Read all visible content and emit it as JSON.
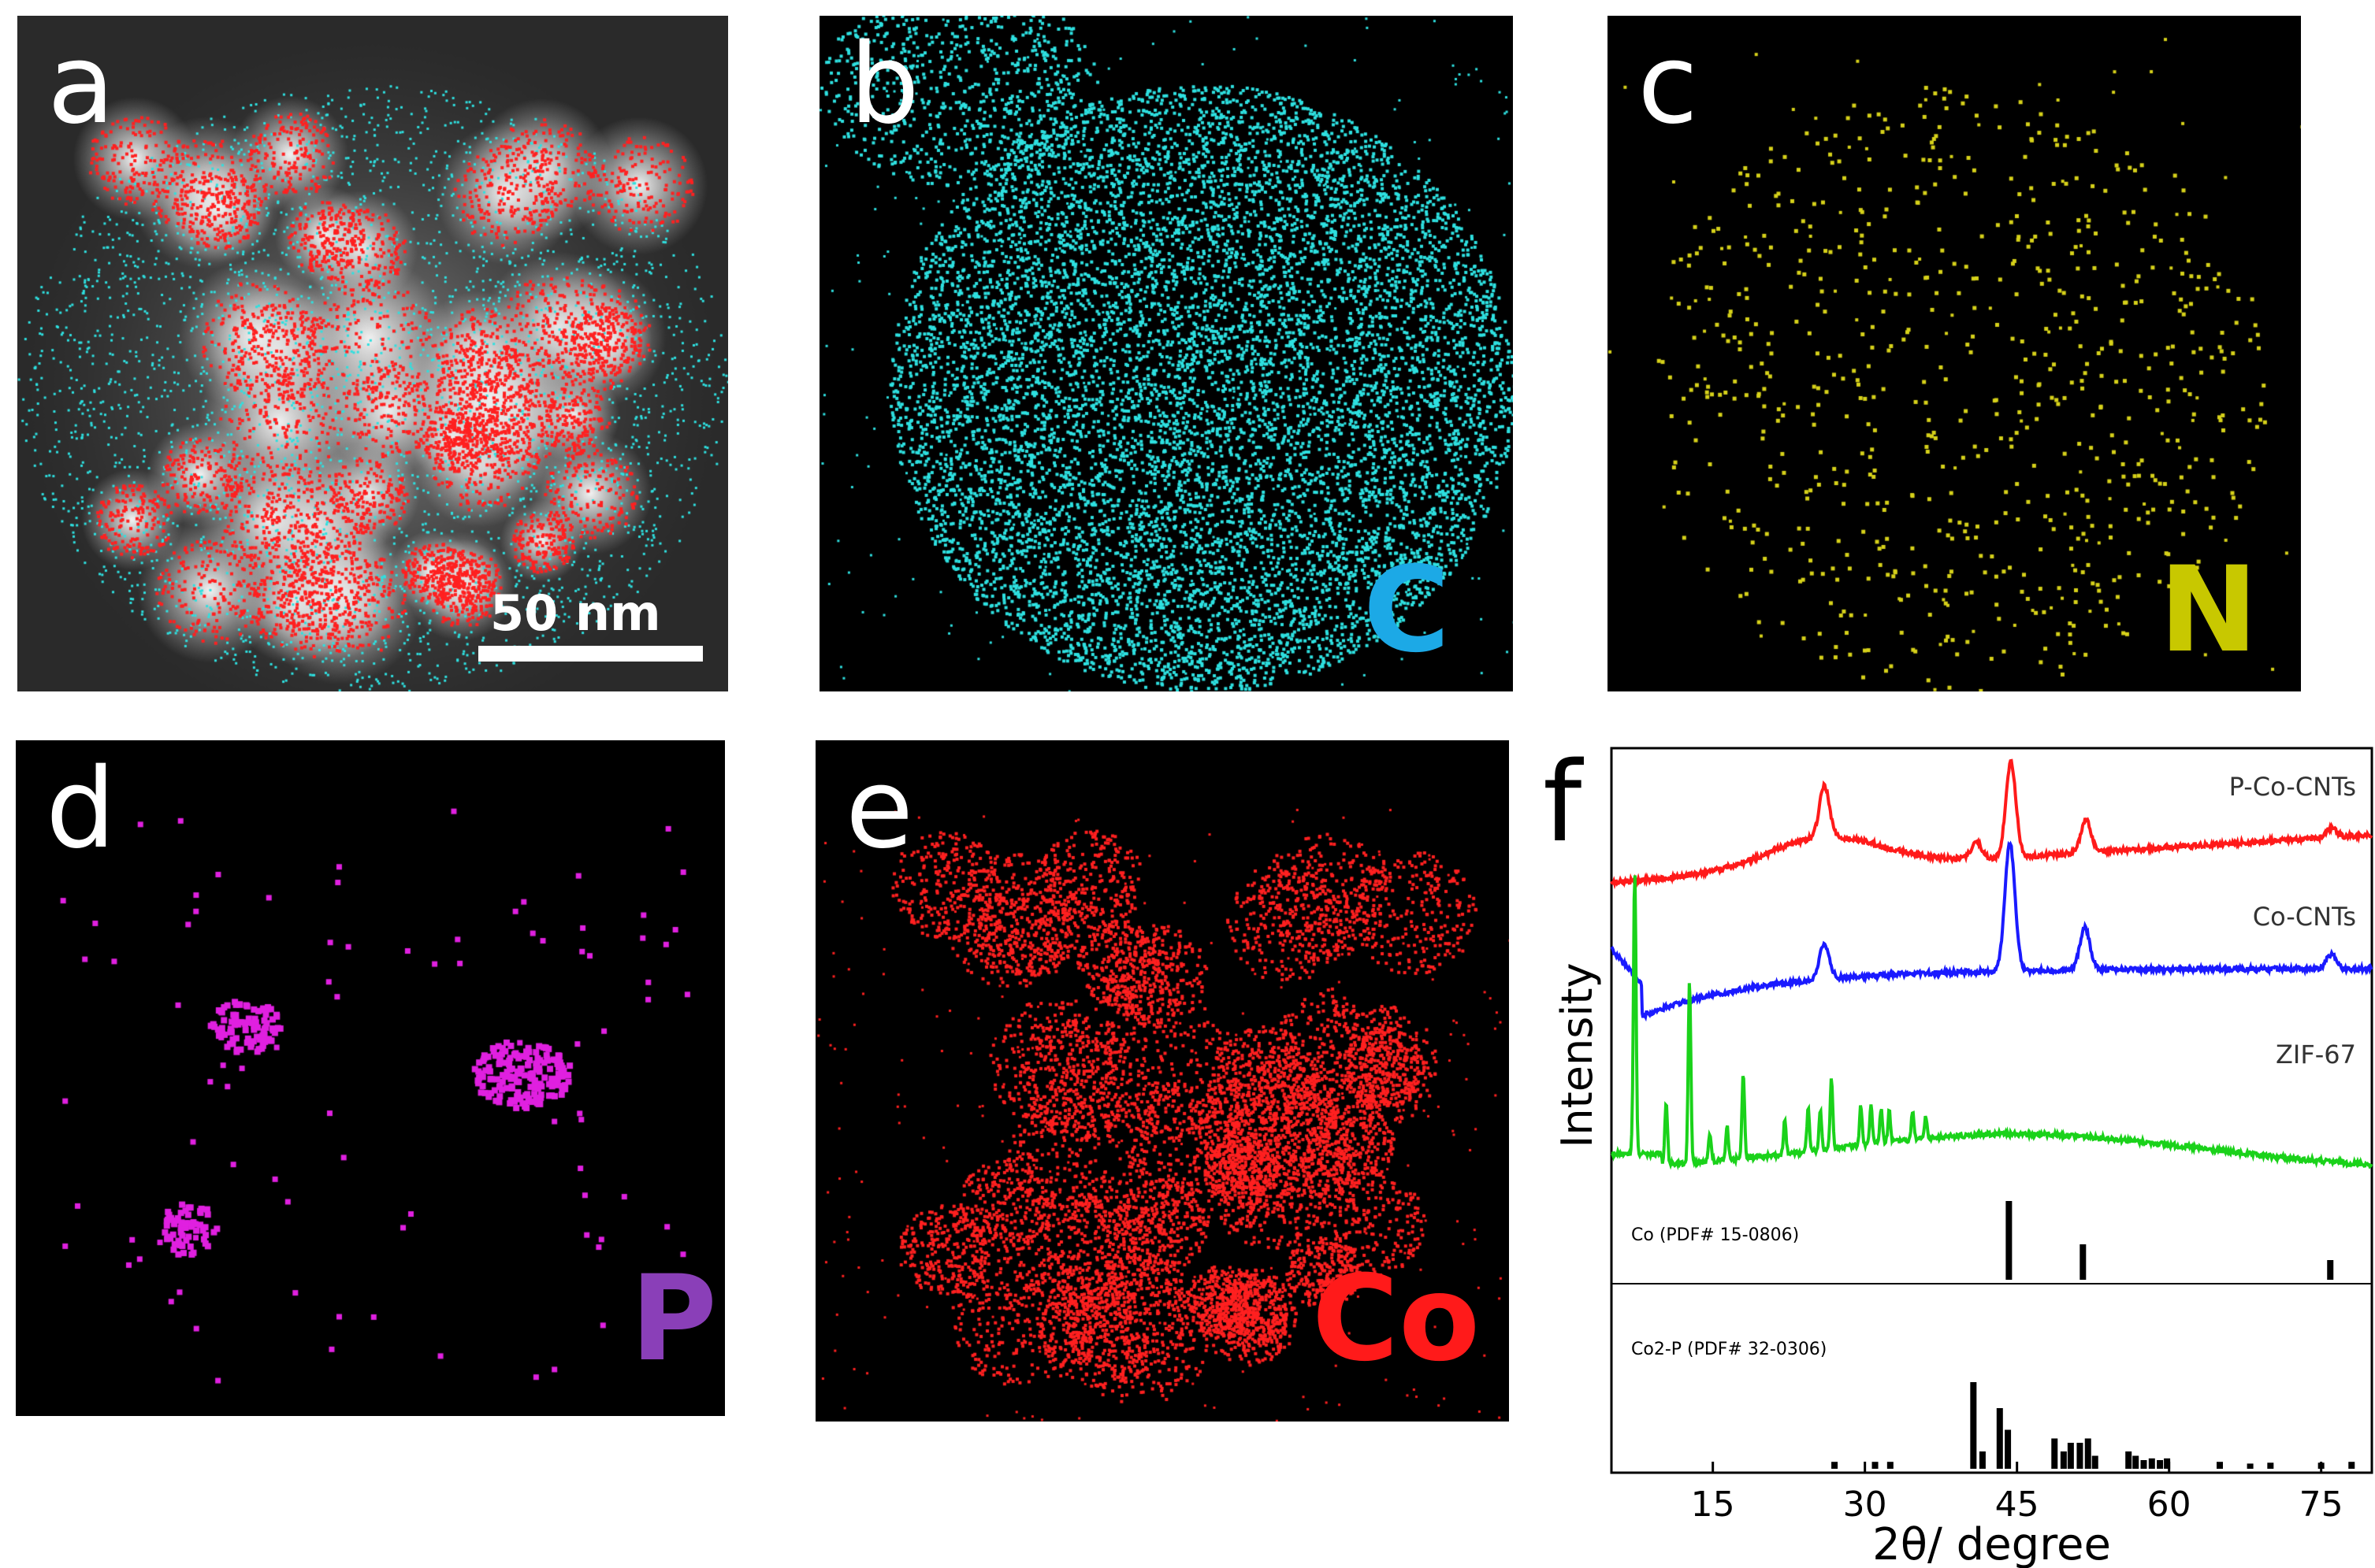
{
  "figure": {
    "panels": [
      {
        "id": "a",
        "label": "a",
        "element": "",
        "element_color": "",
        "scale_bar": "50 nm"
      },
      {
        "id": "b",
        "label": "b",
        "element": "C",
        "element_color": "#1ca9e6"
      },
      {
        "id": "c",
        "label": "c",
        "element": "N",
        "element_color": "#c8c800"
      },
      {
        "id": "d",
        "label": "d",
        "element": "P",
        "element_color": "#8a3fb8"
      },
      {
        "id": "e",
        "label": "e",
        "element": "Co",
        "element_color": "#ff1a1a"
      }
    ],
    "dot_colors": {
      "C": "#2ee0e0",
      "N": "#d6d11a",
      "P": "#e020e0",
      "Co": "#ff2020"
    }
  },
  "chart_data": {
    "type": "line",
    "label": "f",
    "xlabel": "2θ/ degree",
    "ylabel": "Intensity",
    "xlim": [
      5,
      80
    ],
    "xticks": [
      15,
      30,
      45,
      60,
      75
    ],
    "series": [
      {
        "name": "P-Co-CNTs",
        "color": "#ff1a1a",
        "peaks": [
          [
            26,
            0.55
          ],
          [
            41,
            0.18
          ],
          [
            44.4,
            1.0
          ],
          [
            51.8,
            0.35
          ],
          [
            76,
            0.1
          ]
        ]
      },
      {
        "name": "Co-CNTs",
        "color": "#1a1aff",
        "peaks": [
          [
            26,
            0.25
          ],
          [
            44.3,
            0.9
          ],
          [
            51.7,
            0.3
          ],
          [
            76,
            0.1
          ]
        ]
      },
      {
        "name": "ZIF-67",
        "color": "#1ad21a",
        "peaks": [
          [
            7.3,
            1.0
          ],
          [
            10.4,
            0.22
          ],
          [
            12.7,
            0.65
          ],
          [
            14.7,
            0.1
          ],
          [
            16.4,
            0.12
          ],
          [
            18.0,
            0.3
          ],
          [
            22.1,
            0.12
          ],
          [
            24.4,
            0.15
          ],
          [
            25.6,
            0.14
          ],
          [
            26.7,
            0.25
          ],
          [
            29.6,
            0.14
          ],
          [
            30.6,
            0.14
          ],
          [
            31.6,
            0.12
          ],
          [
            32.4,
            0.11
          ],
          [
            34.7,
            0.1
          ],
          [
            36.0,
            0.08
          ]
        ]
      }
    ],
    "references": [
      {
        "name": "Co (PDF# 15-0806)",
        "sticks": [
          [
            44.2,
            1.0
          ],
          [
            51.5,
            0.45
          ],
          [
            75.9,
            0.25
          ]
        ]
      },
      {
        "name": "Co2-P (PDF# 32-0306)",
        "sticks": [
          [
            40.7,
            1.0
          ],
          [
            41.6,
            0.2
          ],
          [
            43.3,
            0.7
          ],
          [
            44.1,
            0.45
          ],
          [
            48.7,
            0.35
          ],
          [
            49.6,
            0.2
          ],
          [
            50.3,
            0.3
          ],
          [
            51.2,
            0.3
          ],
          [
            52.0,
            0.35
          ],
          [
            52.7,
            0.15
          ],
          [
            56.0,
            0.2
          ],
          [
            56.7,
            0.15
          ],
          [
            57.5,
            0.1
          ],
          [
            58.3,
            0.12
          ],
          [
            59.1,
            0.1
          ],
          [
            59.8,
            0.12
          ],
          [
            27.0,
            0.08
          ],
          [
            31.0,
            0.08
          ],
          [
            32.5,
            0.08
          ],
          [
            65,
            0.08
          ],
          [
            68,
            0.06
          ],
          [
            70,
            0.07
          ],
          [
            75,
            0.07
          ],
          [
            78,
            0.08
          ]
        ]
      }
    ]
  }
}
